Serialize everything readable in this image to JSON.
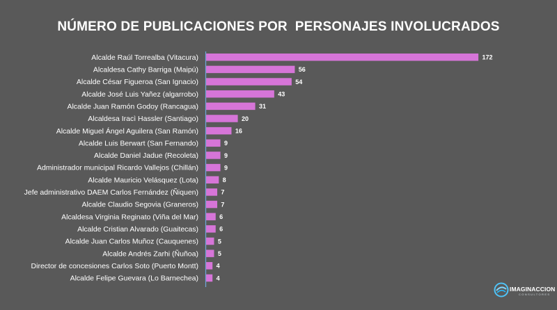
{
  "chart_data": {
    "type": "bar",
    "orientation": "horizontal",
    "title": "NÚMERO DE PUBLICACIONES POR  PERSONAJES INVOLUCRADOS",
    "categories": [
      "Alcalde Raúl Torrealba (Vitacura)",
      "Alcaldesa Cathy Barriga (Maipú)",
      "Alcalde César Figueroa (San Ignacio)",
      "Alcalde José Luis Yañez (algarrobo)",
      "Alcalde Juan Ramón Godoy (Rancagua)",
      "Alcaldesa Iracì Hassler (Santiago)",
      "Alcalde Miguel Ángel Aguilera (San Ramón)",
      "Alcalde Luis Berwart (San Fernando)",
      "Alcalde Daniel Jadue (Recoleta)",
      "Administrador municipal Ricardo Vallejos (Chillán)",
      "Alcalde Mauricio Velásquez (Lota)",
      "Jefe administrativo DAEM Carlos Fernández (Ñiquen)",
      "Alcalde Claudio Segovia (Graneros)",
      "Alcaldesa Virginia Reginato (Viña del Mar)",
      "Alcalde Cristian Alvarado (Guaitecas)",
      "Alcalde Juan Carlos Muñoz (Cauquenes)",
      "Alcalde Andrés Zarhi (Ñuñoa)",
      "Director de concesiones Carlos Soto (Puerto Montt)",
      "Alcalde Felipe Guevara (Lo Barnechea)"
    ],
    "values": [
      172,
      56,
      54,
      43,
      31,
      20,
      16,
      9,
      9,
      9,
      8,
      7,
      7,
      6,
      6,
      5,
      5,
      4,
      4
    ],
    "xlim": [
      0,
      172
    ],
    "grid": false,
    "legend": "none",
    "bar_color": "#d675d8",
    "axis_color": "#6fa8dc",
    "background": "#595959"
  },
  "logo": {
    "text": "IMAGINACCION",
    "subtext": "CONSULTORES"
  }
}
